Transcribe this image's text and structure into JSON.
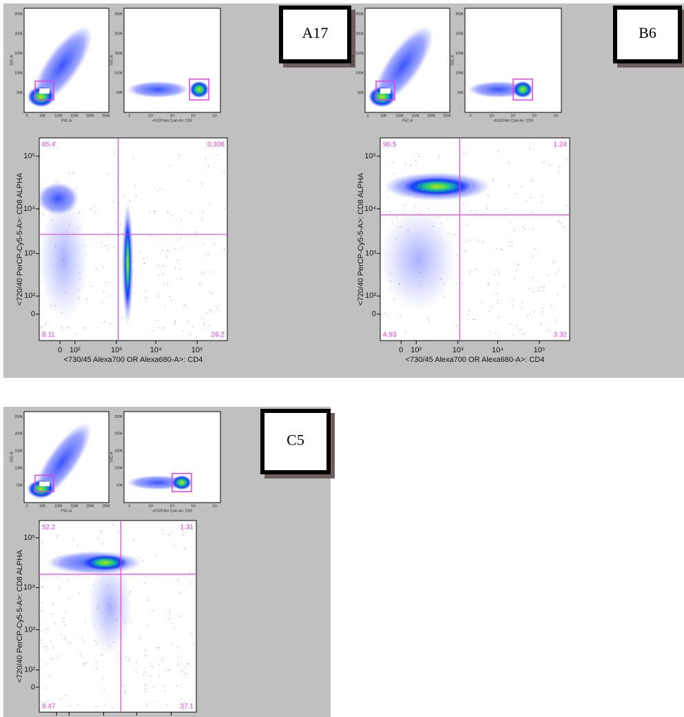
{
  "labels": {
    "scatter_x": "FSC-A",
    "scatter_y": "SSC-A",
    "cd3_x": "<II1/20 Am Cyan-A>: CD3",
    "main_x": "<730/45 Alexa700 OR Alexa680-A>: CD4",
    "main_y": "<720/40 PerCP-Cy5-5-A>: CD8 ALPHA"
  },
  "small_ticks": {
    "x": [
      "0",
      "50K",
      "100K",
      "150K",
      "200K",
      "250K"
    ],
    "y": [
      "50K",
      "100K",
      "150K",
      "200K",
      "250K"
    ],
    "cd3_x": [
      "0",
      "10²",
      "10³",
      "10⁴",
      "10⁵"
    ]
  },
  "main_ticks": {
    "x": [
      "0",
      "10²",
      "10³",
      "10⁴",
      "10⁵"
    ],
    "y": [
      "10⁵",
      "10⁴",
      "10³",
      "10²",
      "0"
    ]
  },
  "panels": [
    {
      "label": "A17",
      "quadrants": [
        "65.4",
        "0.306",
        "8.11",
        "26.2"
      ]
    },
    {
      "label": "B6",
      "quadrants": [
        "90.5",
        "1.24",
        "4.93",
        "3.32"
      ]
    },
    {
      "label": "C5",
      "quadrants": [
        "52.2",
        "1.31",
        "9.47",
        "37.1"
      ]
    }
  ]
}
